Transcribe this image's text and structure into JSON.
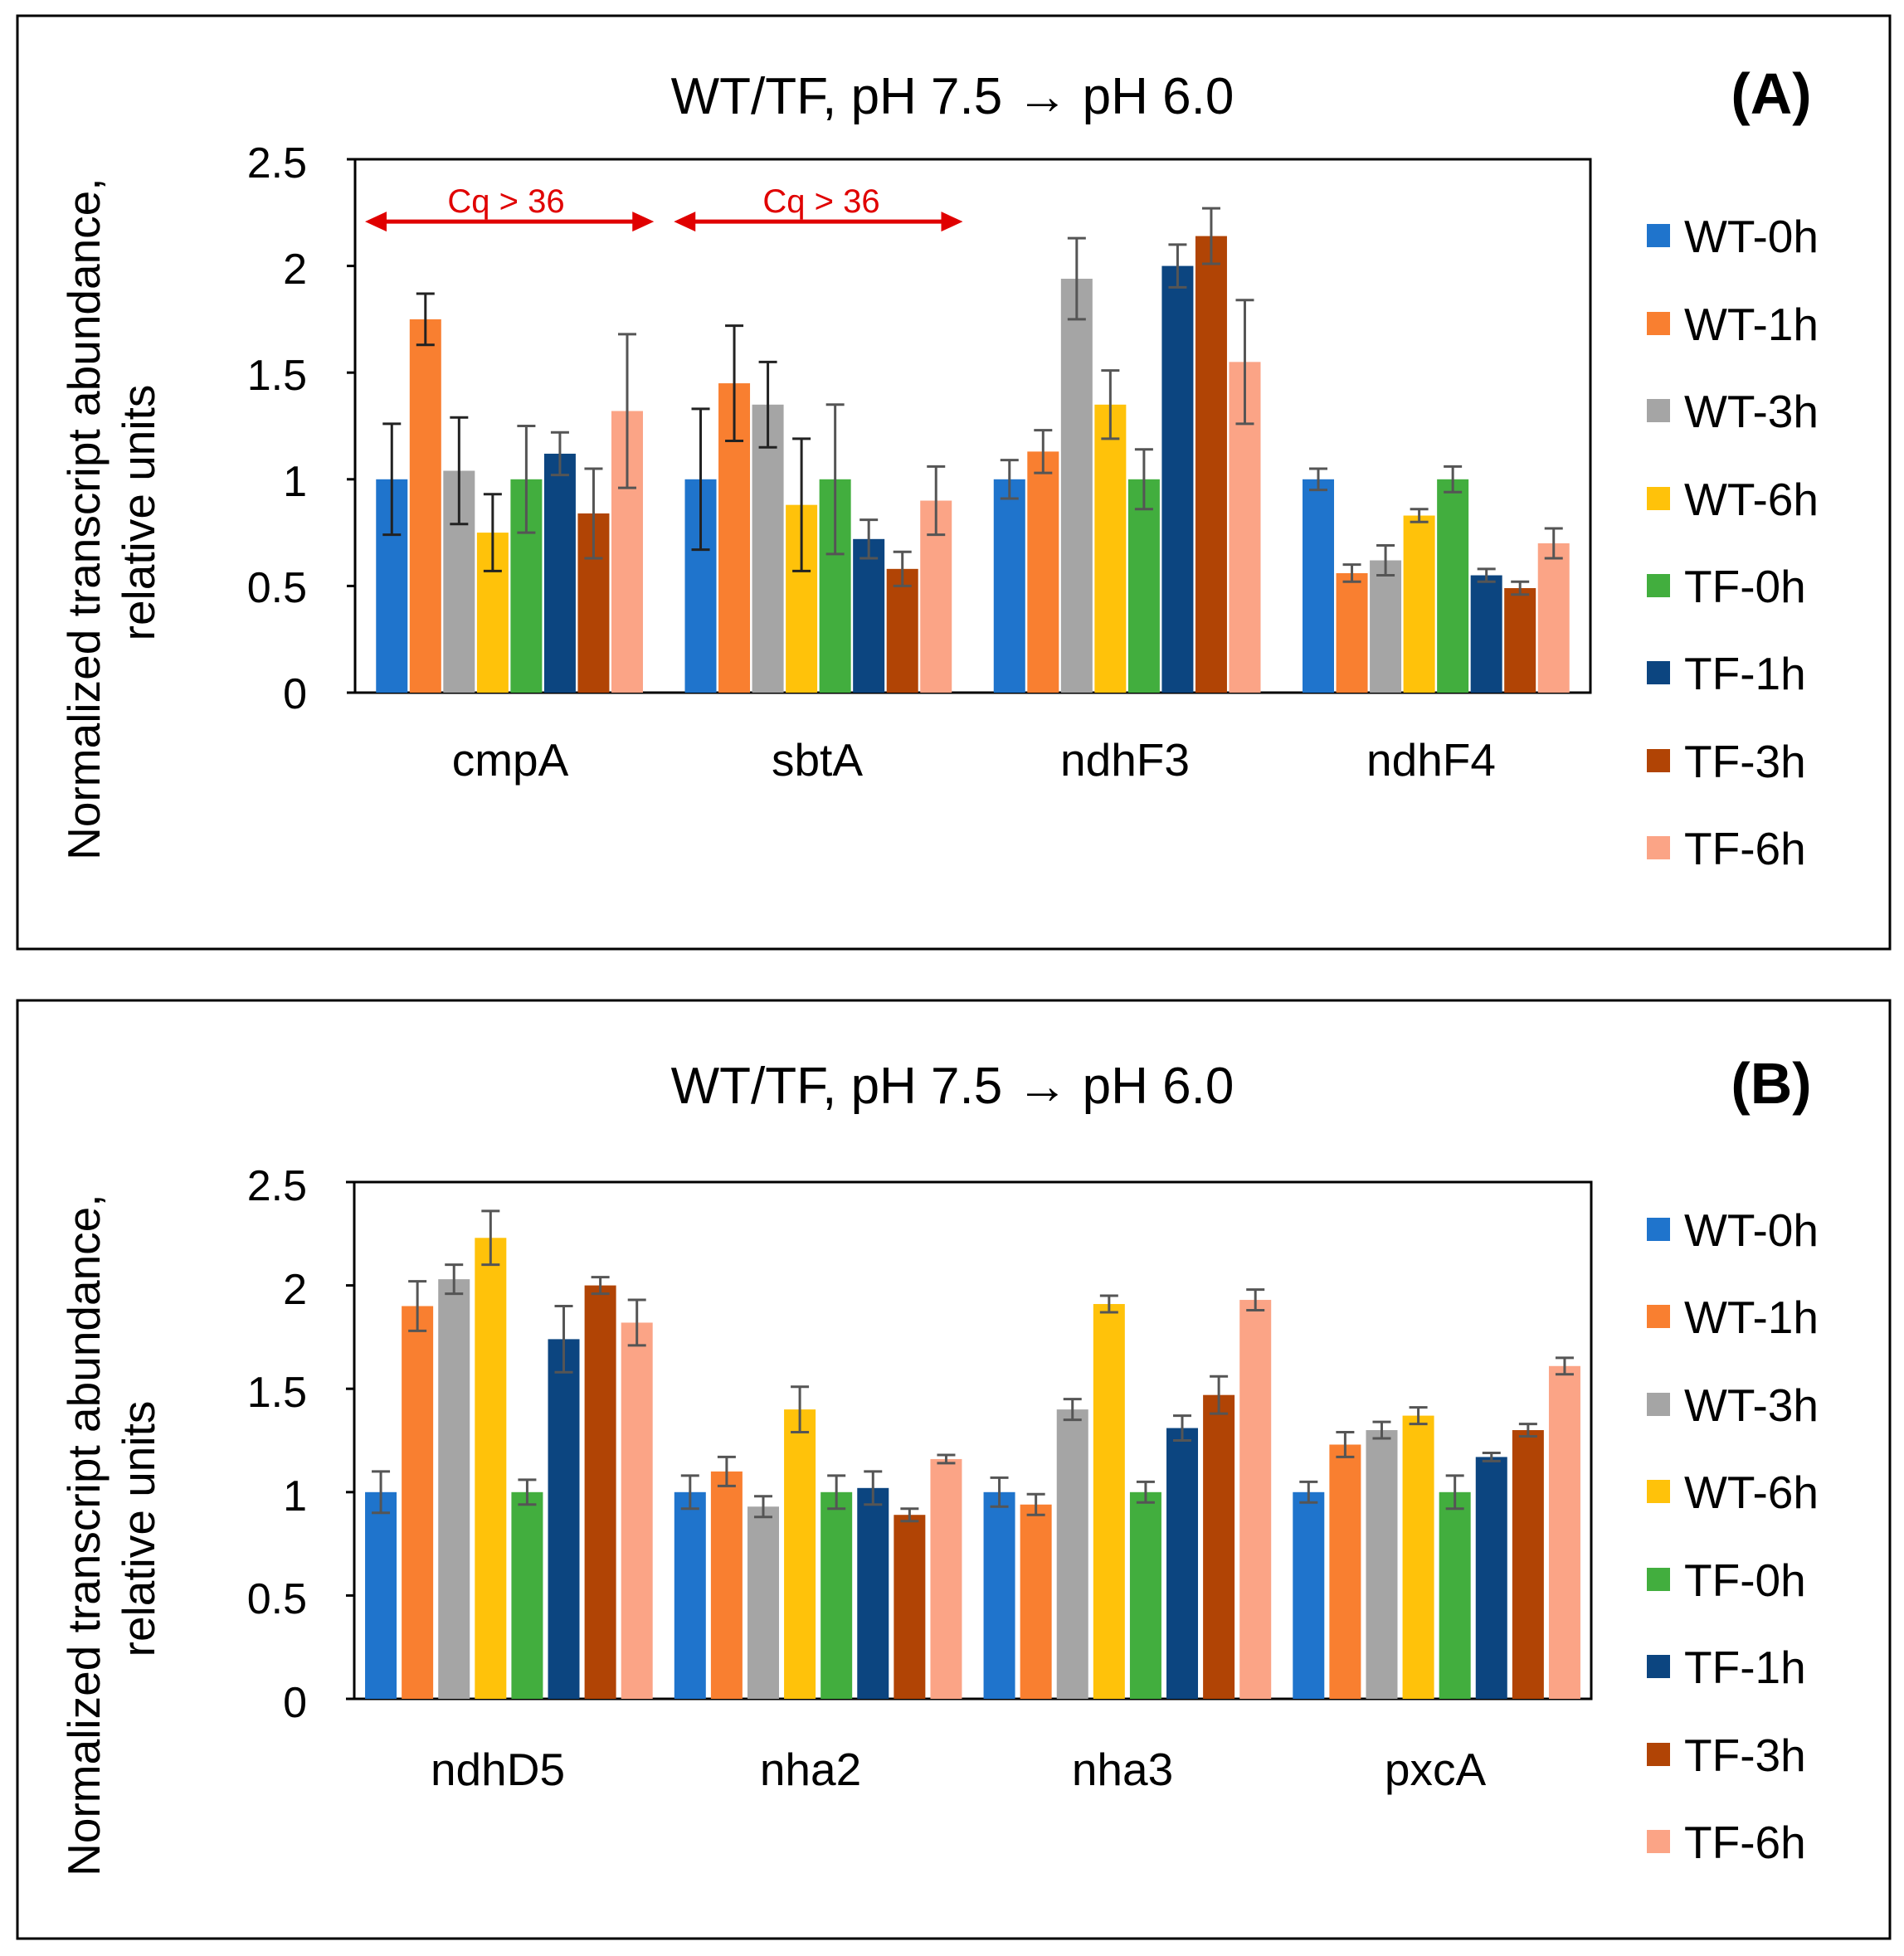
{
  "chart_data": [
    {
      "type": "bar",
      "panel_label": "(A)",
      "title": "WT/TF, pH 7.5 → pH 6.0",
      "ylabel_line1": "Normalized transcript abundance,",
      "ylabel_line2": "relative units",
      "xlabel": "",
      "ylim": [
        0,
        2.5
      ],
      "yticks": [
        "0",
        "0.5",
        "1",
        "1.5",
        "2",
        "2.5"
      ],
      "categories": [
        "cmpA",
        "sbtA",
        "ndhF3",
        "ndhF4"
      ],
      "legend_position": "right",
      "annotations": [
        {
          "text": "Cq > 36",
          "category": "cmpA",
          "color": "#e00000",
          "y": 2.2
        },
        {
          "text": "Cq > 36",
          "category": "sbtA",
          "color": "#e00000",
          "y": 2.2
        }
      ],
      "series": [
        {
          "name": "WT-0h",
          "color": "#1f74cc",
          "values": [
            1.0,
            1.0,
            1.0,
            1.0
          ],
          "errors": [
            0.26,
            0.33,
            0.09,
            0.05
          ]
        },
        {
          "name": "WT-1h",
          "color": "#f97f30",
          "values": [
            1.75,
            1.45,
            1.13,
            0.56
          ],
          "errors": [
            0.12,
            0.27,
            0.1,
            0.04
          ]
        },
        {
          "name": "WT-3h",
          "color": "#a5a5a5",
          "values": [
            1.04,
            1.35,
            1.94,
            0.62
          ],
          "errors": [
            0.25,
            0.2,
            0.19,
            0.07
          ]
        },
        {
          "name": "WT-6h",
          "color": "#ffc20a",
          "values": [
            0.75,
            0.88,
            1.35,
            0.83
          ],
          "errors": [
            0.18,
            0.31,
            0.16,
            0.03
          ]
        },
        {
          "name": "TF-0h",
          "color": "#42ae3e",
          "values": [
            1.0,
            1.0,
            1.0,
            1.0
          ],
          "errors": [
            0.25,
            0.35,
            0.14,
            0.06
          ]
        },
        {
          "name": "TF-1h",
          "color": "#0c4580",
          "values": [
            1.12,
            0.72,
            2.0,
            0.55
          ],
          "errors": [
            0.1,
            0.09,
            0.1,
            0.03
          ]
        },
        {
          "name": "TF-3h",
          "color": "#b14405",
          "values": [
            0.84,
            0.58,
            2.14,
            0.49
          ],
          "errors": [
            0.21,
            0.08,
            0.13,
            0.03
          ]
        },
        {
          "name": "TF-6h",
          "color": "#fba486",
          "values": [
            1.32,
            0.9,
            1.55,
            0.7
          ],
          "errors": [
            0.36,
            0.16,
            0.29,
            0.07
          ]
        }
      ]
    },
    {
      "type": "bar",
      "panel_label": "(B)",
      "title": "WT/TF, pH 7.5 → pH 6.0",
      "ylabel_line1": "Normalized transcript abundance,",
      "ylabel_line2": "relative units",
      "xlabel": "",
      "ylim": [
        0,
        2.5
      ],
      "yticks": [
        "0",
        "0.5",
        "1",
        "1.5",
        "2",
        "2.5"
      ],
      "categories": [
        "ndhD5",
        "nha2",
        "nha3",
        "pxcA"
      ],
      "legend_position": "right",
      "annotations": [],
      "series": [
        {
          "name": "WT-0h",
          "color": "#1f74cc",
          "values": [
            1.0,
            1.0,
            1.0,
            1.0
          ],
          "errors": [
            0.1,
            0.08,
            0.07,
            0.05
          ]
        },
        {
          "name": "WT-1h",
          "color": "#f97f30",
          "values": [
            1.9,
            1.1,
            0.94,
            1.23
          ],
          "errors": [
            0.12,
            0.07,
            0.05,
            0.06
          ]
        },
        {
          "name": "WT-3h",
          "color": "#a5a5a5",
          "values": [
            2.03,
            0.93,
            1.4,
            1.3
          ],
          "errors": [
            0.07,
            0.05,
            0.05,
            0.04
          ]
        },
        {
          "name": "WT-6h",
          "color": "#ffc20a",
          "values": [
            2.23,
            1.4,
            1.91,
            1.37
          ],
          "errors": [
            0.13,
            0.11,
            0.04,
            0.04
          ]
        },
        {
          "name": "TF-0h",
          "color": "#42ae3e",
          "values": [
            1.0,
            1.0,
            1.0,
            1.0
          ],
          "errors": [
            0.06,
            0.08,
            0.05,
            0.08
          ]
        },
        {
          "name": "TF-1h",
          "color": "#0c4580",
          "values": [
            1.74,
            1.02,
            1.31,
            1.17
          ],
          "errors": [
            0.16,
            0.08,
            0.06,
            0.02
          ]
        },
        {
          "name": "TF-3h",
          "color": "#b14405",
          "values": [
            2.0,
            0.89,
            1.47,
            1.3
          ],
          "errors": [
            0.04,
            0.03,
            0.09,
            0.03
          ]
        },
        {
          "name": "TF-6h",
          "color": "#fba486",
          "values": [
            1.82,
            1.16,
            1.93,
            1.61
          ],
          "errors": [
            0.11,
            0.02,
            0.05,
            0.04
          ]
        }
      ]
    }
  ]
}
